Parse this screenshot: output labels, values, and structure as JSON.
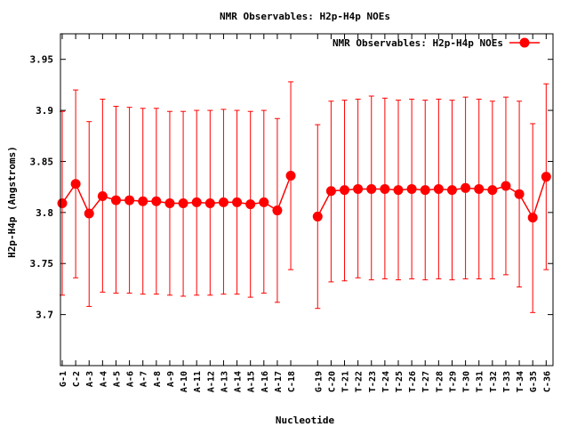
{
  "chart_data": {
    "type": "line",
    "title": "NMR Observables: H2p-H4p NOEs",
    "xlabel": "Nucleotide",
    "ylabel": "H2p-H4p (Angstroms)",
    "ylim": [
      3.65,
      3.975
    ],
    "yticks": [
      3.7,
      3.75,
      3.8,
      3.85,
      3.9,
      3.95
    ],
    "ytick_labels": [
      "3.7",
      "3.75",
      "3.8",
      "3.85",
      "3.9",
      "3.95"
    ],
    "legend_position": "top-right",
    "grid": false,
    "color": "#ff0000",
    "categories": [
      "G-1",
      "C-2",
      "A-3",
      "A-4",
      "A-5",
      "A-6",
      "A-7",
      "A-8",
      "A-9",
      "A-10",
      "A-11",
      "A-12",
      "A-13",
      "A-14",
      "A-15",
      "A-16",
      "A-17",
      "C-18",
      "G-19",
      "C-20",
      "T-21",
      "T-22",
      "T-23",
      "T-24",
      "T-25",
      "T-26",
      "T-27",
      "T-28",
      "T-29",
      "T-30",
      "T-31",
      "T-32",
      "T-33",
      "T-34",
      "G-35",
      "C-36"
    ],
    "series": [
      {
        "name": "NMR Observables: H2p-H4p NOEs",
        "segments": [
          {
            "x": [
              "G-1",
              "C-2",
              "A-3",
              "A-4",
              "A-5",
              "A-6",
              "A-7",
              "A-8",
              "A-9",
              "A-10",
              "A-11",
              "A-12",
              "A-13",
              "A-14",
              "A-15",
              "A-16",
              "A-17",
              "C-18"
            ],
            "values": [
              3.809,
              3.828,
              3.799,
              3.816,
              3.812,
              3.812,
              3.811,
              3.811,
              3.809,
              3.809,
              3.81,
              3.809,
              3.81,
              3.81,
              3.808,
              3.81,
              3.802,
              3.836
            ],
            "err_low": [
              3.719,
              3.736,
              3.708,
              3.722,
              3.721,
              3.721,
              3.72,
              3.72,
              3.719,
              3.718,
              3.719,
              3.719,
              3.72,
              3.72,
              3.717,
              3.721,
              3.712,
              3.744
            ],
            "err_high": [
              3.899,
              3.92,
              3.889,
              3.911,
              3.904,
              3.903,
              3.902,
              3.902,
              3.899,
              3.899,
              3.9,
              3.9,
              3.901,
              3.9,
              3.899,
              3.9,
              3.892,
              3.928
            ]
          },
          {
            "x": [
              "G-19",
              "C-20",
              "T-21",
              "T-22",
              "T-23",
              "T-24",
              "T-25",
              "T-26",
              "T-27",
              "T-28",
              "T-29",
              "T-30",
              "T-31",
              "T-32",
              "T-33",
              "T-34",
              "G-35",
              "C-36"
            ],
            "values": [
              3.796,
              3.821,
              3.822,
              3.823,
              3.823,
              3.823,
              3.822,
              3.823,
              3.822,
              3.823,
              3.822,
              3.824,
              3.823,
              3.822,
              3.826,
              3.818,
              3.795,
              3.835
            ],
            "err_low": [
              3.706,
              3.732,
              3.733,
              3.736,
              3.734,
              3.735,
              3.734,
              3.735,
              3.734,
              3.735,
              3.734,
              3.735,
              3.735,
              3.735,
              3.739,
              3.727,
              3.702,
              3.744
            ],
            "err_high": [
              3.886,
              3.909,
              3.91,
              3.911,
              3.914,
              3.912,
              3.91,
              3.911,
              3.91,
              3.911,
              3.91,
              3.913,
              3.911,
              3.909,
              3.913,
              3.909,
              3.887,
              3.926
            ]
          }
        ]
      }
    ]
  }
}
